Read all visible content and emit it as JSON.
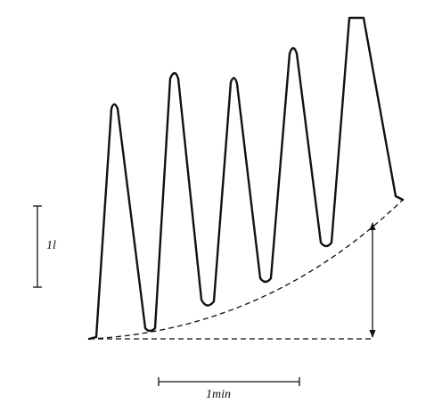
{
  "labels": {
    "volume_scale": "1l",
    "time_scale": "1min"
  }
}
